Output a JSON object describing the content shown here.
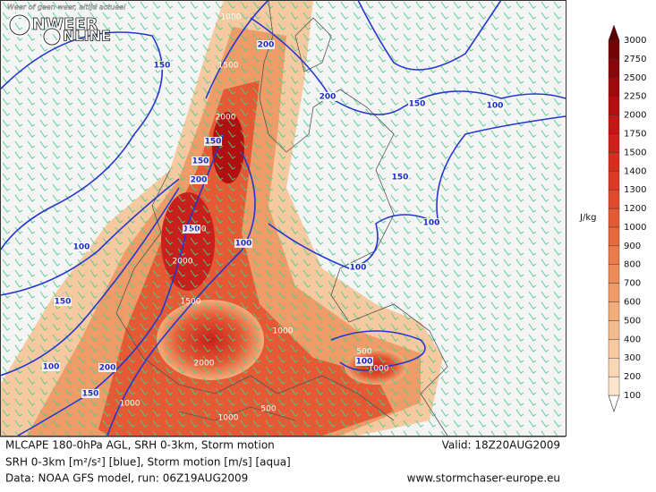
{
  "logo": {
    "tagline": "Weer of geen weer, altijd actueel",
    "word1": "NWEER",
    "word2": "NLINE"
  },
  "legend": {
    "unit": "J/kg",
    "levels": [
      100,
      200,
      300,
      400,
      500,
      600,
      700,
      800,
      900,
      1000,
      1200,
      1300,
      1400,
      1500,
      1750,
      2000,
      2250,
      2500,
      2750,
      3000
    ],
    "colors": [
      "#fbe5cc",
      "#f9d6b4",
      "#f7c9a0",
      "#f5bb8c",
      "#f3ad7a",
      "#f09c68",
      "#ed8c58",
      "#ea7b4a",
      "#e66a3e",
      "#e35a34",
      "#df4a2c",
      "#da3b25",
      "#d42e1f",
      "#cc221a",
      "#bf1815",
      "#b01010",
      "#9c0a0b",
      "#880508",
      "#730205",
      "#5a0003"
    ]
  },
  "map": {
    "srh_labels": [
      150,
      200,
      200,
      150,
      100,
      150,
      100,
      100,
      150,
      150,
      200,
      150,
      100,
      100,
      150,
      100,
      200,
      150,
      100
    ],
    "cape_labels": [
      1000,
      1500,
      2000,
      100,
      2500,
      2000,
      1500,
      1000,
      2000,
      500,
      1000,
      1000,
      1000,
      500
    ]
  },
  "footer": {
    "title": "MLCAPE 180-0hPa AGL, SRH 0-3km, Storm motion",
    "valid": "Valid: 18Z20AUG2009",
    "line2": "SRH 0-3km [m²/s²] [blue], Storm motion [m/s] [aqua]",
    "line3": "Data: NOAA GFS model, run: 06Z19AUG2009",
    "site": "www.stormchaser-europe.eu"
  }
}
